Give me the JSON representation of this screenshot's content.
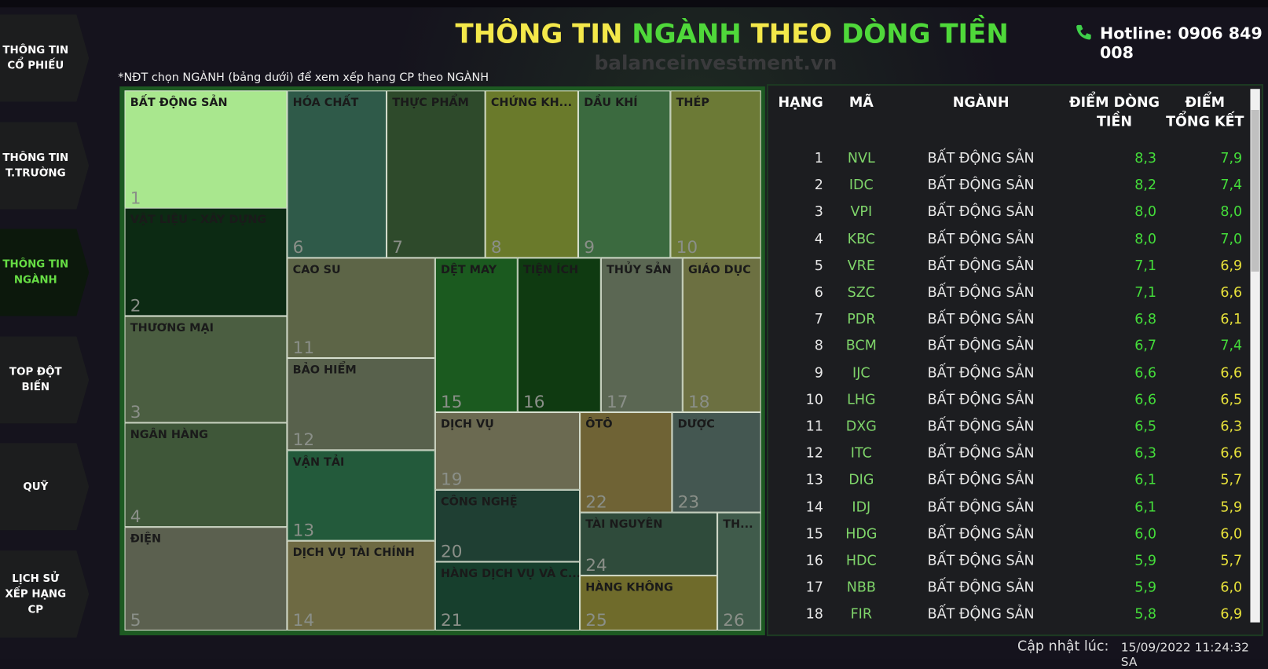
{
  "header": {
    "title": [
      "THÔNG TIN",
      "NGÀNH",
      "THEO",
      "DÒNG TIỀN"
    ],
    "hotline": "Hotline: 0906 849 008",
    "watermark": "balanceinvestment.vn"
  },
  "sidebar": {
    "items": [
      "THÔNG TIN CỔ PHIẾU",
      "THÔNG TIN T.TRƯỜNG",
      "THÔNG TIN NGÀNH",
      "TOP ĐỘT BIẾN",
      "QUỸ",
      "LỊCH SỬ XẾP HẠNG CP"
    ],
    "active": 2
  },
  "note": "*NĐT chọn NGÀNH (bảng dưới) để xem xếp hạng CP theo NGÀNH",
  "treemap": {
    "tiles": [
      {
        "label": "BẤT ĐỘNG SẢN",
        "rank": "1",
        "color": "#a9e78e"
      },
      {
        "label": "VẬT LIỆU - XÂY DỰNG",
        "rank": "2",
        "color": "#0c2a13"
      },
      {
        "label": "THƯƠNG MẠI",
        "rank": "3",
        "color": "#4b5e41"
      },
      {
        "label": "NGÂN HÀNG",
        "rank": "4",
        "color": "#3f5739"
      },
      {
        "label": "ĐIỆN",
        "rank": "5",
        "color": "#5b604f"
      },
      {
        "label": "HÓA CHẤT",
        "rank": "6",
        "color": "#2f5a49"
      },
      {
        "label": "THỰC PHẨM",
        "rank": "7",
        "color": "#2e4a2b"
      },
      {
        "label": "CHỨNG KH...",
        "rank": "8",
        "color": "#6a7a2b"
      },
      {
        "label": "DẦU KHÍ",
        "rank": "9",
        "color": "#3b6a3f"
      },
      {
        "label": "THÉP",
        "rank": "10",
        "color": "#6c7a36"
      },
      {
        "label": "CAO SU",
        "rank": "11",
        "color": "#5d6547"
      },
      {
        "label": "BẢO HIỂM",
        "rank": "12",
        "color": "#58614c"
      },
      {
        "label": "VẬN TẢI",
        "rank": "13",
        "color": "#235a3b"
      },
      {
        "label": "DỊCH VỤ TÀI CHÍNH",
        "rank": "14",
        "color": "#6e6a43"
      },
      {
        "label": "DỆT MAY",
        "rank": "15",
        "color": "#1b5a1f"
      },
      {
        "label": "TIỆN ÍCH",
        "rank": "16",
        "color": "#0f3a11"
      },
      {
        "label": "THỦY SẢN",
        "rank": "17",
        "color": "#5b6753"
      },
      {
        "label": "GIÁO DỤC",
        "rank": "18",
        "color": "#6c7041"
      },
      {
        "label": "DỊCH VỤ",
        "rank": "19",
        "color": "#6b6a51"
      },
      {
        "label": "CÔNG NGHỆ",
        "rank": "20",
        "color": "#1f3f33"
      },
      {
        "label": "HÀNG DỊCH VỤ VÀ C...",
        "rank": "21",
        "color": "#173f2d"
      },
      {
        "label": "ÔTÔ",
        "rank": "22",
        "color": "#6f6335"
      },
      {
        "label": "DƯỢC",
        "rank": "23",
        "color": "#445751"
      },
      {
        "label": "TÀI NGUYÊN",
        "rank": "24",
        "color": "#2f4b3b"
      },
      {
        "label": "HÀNG KHÔNG",
        "rank": "25",
        "color": "#6f6b2b"
      },
      {
        "label": "TH...",
        "rank": "26",
        "color": "#405b4b"
      }
    ]
  },
  "table": {
    "headers": [
      "HẠNG",
      "MÃ",
      "NGÀNH",
      "ĐIỂM DÒNG TIỀN",
      "ĐIỂM TỔNG KẾT"
    ],
    "rows": [
      [
        "1",
        "NVL",
        "BẤT ĐỘNG SẢN",
        "8,3",
        "7,9"
      ],
      [
        "2",
        "IDC",
        "BẤT ĐỘNG SẢN",
        "8,2",
        "7,4"
      ],
      [
        "3",
        "VPI",
        "BẤT ĐỘNG SẢN",
        "8,0",
        "8,0"
      ],
      [
        "4",
        "KBC",
        "BẤT ĐỘNG SẢN",
        "8,0",
        "7,0"
      ],
      [
        "5",
        "VRE",
        "BẤT ĐỘNG SẢN",
        "7,1",
        "6,9"
      ],
      [
        "6",
        "SZC",
        "BẤT ĐỘNG SẢN",
        "7,1",
        "6,6"
      ],
      [
        "7",
        "PDR",
        "BẤT ĐỘNG SẢN",
        "6,8",
        "6,1"
      ],
      [
        "8",
        "BCM",
        "BẤT ĐỘNG SẢN",
        "6,7",
        "7,4"
      ],
      [
        "9",
        "IJC",
        "BẤT ĐỘNG SẢN",
        "6,6",
        "6,6"
      ],
      [
        "10",
        "LHG",
        "BẤT ĐỘNG SẢN",
        "6,6",
        "6,5"
      ],
      [
        "11",
        "DXG",
        "BẤT ĐỘNG SẢN",
        "6,5",
        "6,3"
      ],
      [
        "12",
        "ITC",
        "BẤT ĐỘNG SẢN",
        "6,3",
        "6,6"
      ],
      [
        "13",
        "DIG",
        "BẤT ĐỘNG SẢN",
        "6,1",
        "5,7"
      ],
      [
        "14",
        "IDJ",
        "BẤT ĐỘNG SẢN",
        "6,1",
        "5,9"
      ],
      [
        "15",
        "HDG",
        "BẤT ĐỘNG SẢN",
        "6,0",
        "6,0"
      ],
      [
        "16",
        "HDC",
        "BẤT ĐỘNG SẢN",
        "5,9",
        "5,7"
      ],
      [
        "17",
        "NBB",
        "BẤT ĐỘNG SẢN",
        "5,9",
        "6,0"
      ],
      [
        "18",
        "FIR",
        "BẤT ĐỘNG SẢN",
        "5,8",
        "6,9"
      ]
    ]
  },
  "footer": {
    "label": "Cập nhật lúc:",
    "timestamp": "15/09/2022 11:24:32 SA"
  }
}
